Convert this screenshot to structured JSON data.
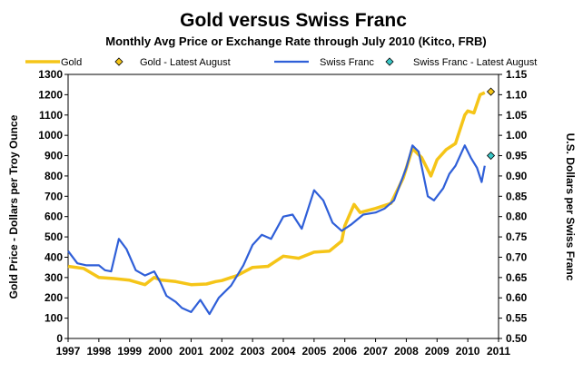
{
  "chart_data": {
    "type": "line",
    "title": "Gold versus Swiss Franc",
    "subtitle": "Monthly Avg Price or Exchange Rate through July 2010 (Kitco, FRB)",
    "ylabel_left": "Gold Price - Dollars per Troy Ounce",
    "ylabel_right": "U.S. Dollars per Swiss Franc",
    "xlabel": "",
    "xlim": [
      1997,
      2011
    ],
    "ylim_left": [
      0,
      1300
    ],
    "ylim_right": [
      0.5,
      1.15
    ],
    "x_ticks": [
      1997,
      1998,
      1999,
      2000,
      2001,
      2002,
      2003,
      2004,
      2005,
      2006,
      2007,
      2008,
      2009,
      2010,
      2011
    ],
    "y_ticks_left": [
      0,
      100,
      200,
      300,
      400,
      500,
      600,
      700,
      800,
      900,
      1000,
      1100,
      1200,
      1300
    ],
    "y_ticks_right": [
      "0.50",
      "0.55",
      "0.60",
      "0.65",
      "0.70",
      "0.75",
      "0.80",
      "0.85",
      "0.90",
      "0.95",
      "1.00",
      "1.05",
      "1.10",
      "1.15"
    ],
    "legend": [
      {
        "label": "Gold",
        "kind": "line",
        "color": "#f5c518"
      },
      {
        "label": "Gold - Latest August",
        "kind": "diamond",
        "color": "#f5c518"
      },
      {
        "label": "Swiss Franc",
        "kind": "line",
        "color": "#2f5fd8"
      },
      {
        "label": "Swiss Franc - Latest August",
        "kind": "diamond",
        "color": "#39c8c8"
      }
    ],
    "series": [
      {
        "name": "Gold",
        "axis": "left",
        "color": "#f5c518",
        "points": [
          [
            1997.0,
            355
          ],
          [
            1997.5,
            345
          ],
          [
            1998.0,
            300
          ],
          [
            1998.5,
            295
          ],
          [
            1999.0,
            287
          ],
          [
            1999.5,
            265
          ],
          [
            1999.8,
            300
          ],
          [
            2000.0,
            288
          ],
          [
            2000.5,
            280
          ],
          [
            2001.0,
            265
          ],
          [
            2001.5,
            268
          ],
          [
            2001.8,
            280
          ],
          [
            2002.0,
            285
          ],
          [
            2002.5,
            310
          ],
          [
            2003.0,
            350
          ],
          [
            2003.5,
            355
          ],
          [
            2004.0,
            405
          ],
          [
            2004.5,
            395
          ],
          [
            2005.0,
            425
          ],
          [
            2005.5,
            430
          ],
          [
            2005.9,
            480
          ],
          [
            2006.0,
            555
          ],
          [
            2006.3,
            660
          ],
          [
            2006.5,
            620
          ],
          [
            2007.0,
            640
          ],
          [
            2007.5,
            665
          ],
          [
            2007.9,
            790
          ],
          [
            2008.2,
            935
          ],
          [
            2008.5,
            890
          ],
          [
            2008.8,
            800
          ],
          [
            2009.0,
            880
          ],
          [
            2009.3,
            930
          ],
          [
            2009.6,
            960
          ],
          [
            2009.9,
            1100
          ],
          [
            2010.0,
            1120
          ],
          [
            2010.2,
            1110
          ],
          [
            2010.4,
            1200
          ],
          [
            2010.55,
            1210
          ]
        ],
        "latest_august": [
          2010.75,
          1215
        ]
      },
      {
        "name": "Swiss Franc",
        "axis": "right",
        "color": "#2f5fd8",
        "points": [
          [
            1997.0,
            0.715
          ],
          [
            1997.3,
            0.685
          ],
          [
            1997.6,
            0.68
          ],
          [
            1998.0,
            0.68
          ],
          [
            1998.2,
            0.668
          ],
          [
            1998.4,
            0.665
          ],
          [
            1998.65,
            0.745
          ],
          [
            1998.9,
            0.72
          ],
          [
            1999.2,
            0.668
          ],
          [
            1999.5,
            0.655
          ],
          [
            1999.8,
            0.665
          ],
          [
            2000.0,
            0.638
          ],
          [
            2000.2,
            0.605
          ],
          [
            2000.5,
            0.59
          ],
          [
            2000.7,
            0.575
          ],
          [
            2001.0,
            0.565
          ],
          [
            2001.3,
            0.595
          ],
          [
            2001.6,
            0.56
          ],
          [
            2001.9,
            0.6
          ],
          [
            2002.3,
            0.63
          ],
          [
            2002.7,
            0.68
          ],
          [
            2003.0,
            0.73
          ],
          [
            2003.3,
            0.755
          ],
          [
            2003.6,
            0.745
          ],
          [
            2004.0,
            0.8
          ],
          [
            2004.3,
            0.805
          ],
          [
            2004.6,
            0.77
          ],
          [
            2005.0,
            0.865
          ],
          [
            2005.3,
            0.84
          ],
          [
            2005.6,
            0.785
          ],
          [
            2005.9,
            0.765
          ],
          [
            2006.2,
            0.78
          ],
          [
            2006.6,
            0.805
          ],
          [
            2007.0,
            0.81
          ],
          [
            2007.3,
            0.82
          ],
          [
            2007.6,
            0.84
          ],
          [
            2008.0,
            0.92
          ],
          [
            2008.2,
            0.975
          ],
          [
            2008.4,
            0.96
          ],
          [
            2008.7,
            0.85
          ],
          [
            2008.9,
            0.84
          ],
          [
            2009.2,
            0.87
          ],
          [
            2009.4,
            0.905
          ],
          [
            2009.6,
            0.925
          ],
          [
            2009.9,
            0.975
          ],
          [
            2010.1,
            0.945
          ],
          [
            2010.3,
            0.92
          ],
          [
            2010.45,
            0.885
          ],
          [
            2010.55,
            0.925
          ]
        ],
        "latest_august": [
          2010.75,
          0.95
        ]
      }
    ]
  }
}
